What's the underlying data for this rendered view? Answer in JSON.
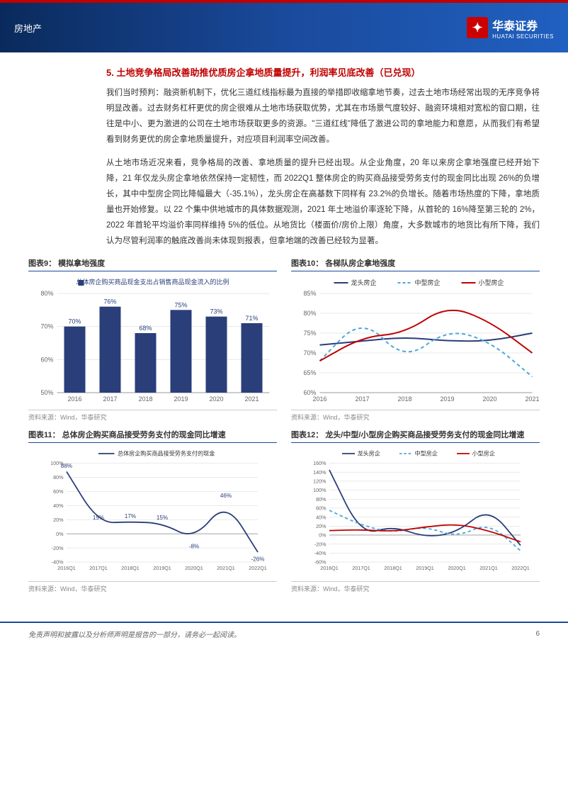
{
  "header": {
    "category": "房地产",
    "logo": {
      "cn": "华泰证券",
      "en": "HUATAI SECURITIES"
    }
  },
  "section": {
    "number": "5.",
    "title": "土地竞争格局改善助推优质房企拿地质量提升，利润率见底改善（已兑现）"
  },
  "paragraphs": [
    "我们当时预判：融资新机制下，优化三道红线指标最为直接的举措即收缩拿地节奏，过去土地市场经常出现的无序竞争将明显改善。过去财务杠杆更优的房企很难从土地市场获取优势，尤其在市场景气度较好、融资环境相对宽松的窗口期，往往是中小、更为激进的公司在土地市场获取更多的资源。\"三道红线\"降低了激进公司的拿地能力和意愿，从而我们有希望看到财务更优的房企拿地质量提升，对应项目利润率空间改善。",
    "从土地市场近况来看，竞争格局的改善、拿地质量的提升已经出现。从企业角度，20 年以来房企拿地强度已经开始下降，21 年仅龙头房企拿地依然保持一定韧性，而 2022Q1 整体房企的购买商品接受劳务支付的现金同比出现 26%的负增长，其中中型房企同比降幅最大（-35.1%），龙头房企在高基数下同样有 23.2%的负增长。随着市场热度的下降，拿地质量也开始修复。以 22 个集中供地城市的具体数据观测，2021 年土地溢价率逐轮下降，从首轮的 16%降至第三轮的 2%，2022 年首轮平均溢价率同样维持 5%的低位。从地货比（楼面价/房价上限）角度，大多数城市的地货比有所下降，我们认为尽管利润率的触底改善尚未体现到报表，但拿地端的改善已经较为显著。"
  ],
  "chart9": {
    "title": "图表9： 模拟拿地强度",
    "type": "bar",
    "legend": "总体房企购买商品现金支出占销售商品现金流入的比例",
    "categories": [
      "2016",
      "2017",
      "2018",
      "2019",
      "2020",
      "2021"
    ],
    "values": [
      70,
      76,
      68,
      75,
      73,
      71
    ],
    "labels": [
      "70%",
      "76%",
      "68%",
      "75%",
      "73%",
      "71%"
    ],
    "ylim": [
      50,
      80
    ],
    "ytick_step": 10,
    "yticks": [
      "50%",
      "60%",
      "70%",
      "80%"
    ],
    "bar_color": "#2a3e7a",
    "label_color": "#2a3e7a",
    "grid_color": "#d0d0d0",
    "source": "资料来源：Wind，华泰研究"
  },
  "chart10": {
    "title": "图表10： 各梯队房企拿地强度",
    "type": "line",
    "categories": [
      "2016",
      "2017",
      "2018",
      "2019",
      "2020",
      "2021"
    ],
    "series": [
      {
        "name": "龙头房企",
        "color": "#2a3e7a",
        "dash": false,
        "values": [
          72,
          73,
          74,
          73,
          73,
          75
        ]
      },
      {
        "name": "中型房企",
        "color": "#4da8da",
        "dash": true,
        "values": [
          68,
          79,
          68,
          76,
          73,
          64
        ]
      },
      {
        "name": "小型房企",
        "color": "#c00000",
        "dash": false,
        "values": [
          68,
          74,
          75,
          82,
          78,
          70
        ]
      }
    ],
    "ylim": [
      60,
      85
    ],
    "ytick_step": 5,
    "yticks": [
      "60%",
      "65%",
      "70%",
      "75%",
      "80%",
      "85%"
    ],
    "grid_color": "#d0d0d0",
    "source": "资料来源：Wind，华泰研究"
  },
  "chart11": {
    "title": "图表11： 总体房企购买商品接受劳务支付的现金同比增速",
    "type": "line",
    "legend": "总体房企购买商品接受劳务支付的现金",
    "categories": [
      "2016Q1",
      "2017Q1",
      "2018Q1",
      "2019Q1",
      "2020Q1",
      "2021Q1",
      "2022Q1"
    ],
    "values": [
      88,
      15,
      17,
      15,
      -8,
      46,
      -26
    ],
    "labels": [
      "88%",
      "15%",
      "17%",
      "15%",
      "-8%",
      "46%",
      "-26%"
    ],
    "ylim": [
      -40,
      100
    ],
    "ytick_step": 20,
    "yticks": [
      "-40%",
      "-20%",
      "0%",
      "20%",
      "40%",
      "60%",
      "80%",
      "100%"
    ],
    "line_color": "#2a3e7a",
    "grid_color": "#d0d0d0",
    "source": "资料来源：Wind，华泰研究"
  },
  "chart12": {
    "title": "图表12： 龙头/中型/小型房企购买商品接受劳务支付的现金同比增速",
    "type": "line",
    "categories": [
      "2016Q1",
      "2017Q1",
      "2018Q1",
      "2019Q1",
      "2020Q1",
      "2021Q1",
      "2022Q1"
    ],
    "series": [
      {
        "name": "龙头房企",
        "color": "#2a3e7a",
        "dash": false,
        "values": [
          145,
          0,
          20,
          -5,
          5,
          62,
          -23
        ]
      },
      {
        "name": "中型房企",
        "color": "#4da8da",
        "dash": true,
        "values": [
          55,
          22,
          5,
          20,
          -5,
          28,
          -35
        ]
      },
      {
        "name": "小型房企",
        "color": "#c00000",
        "dash": false,
        "values": [
          10,
          12,
          8,
          18,
          25,
          10,
          -15
        ]
      }
    ],
    "ylim": [
      -60,
      160
    ],
    "ytick_step": 20,
    "yticks": [
      "-60%",
      "-40%",
      "-20%",
      "0%",
      "20%",
      "40%",
      "60%",
      "80%",
      "100%",
      "120%",
      "140%",
      "160%"
    ],
    "grid_color": "#d0d0d0",
    "source": "资料来源：Wind，华泰研究"
  },
  "footer": {
    "disclaimer": "免责声明和披露以及分析师声明是报告的一部分，请务必一起阅读。",
    "page": "6"
  }
}
